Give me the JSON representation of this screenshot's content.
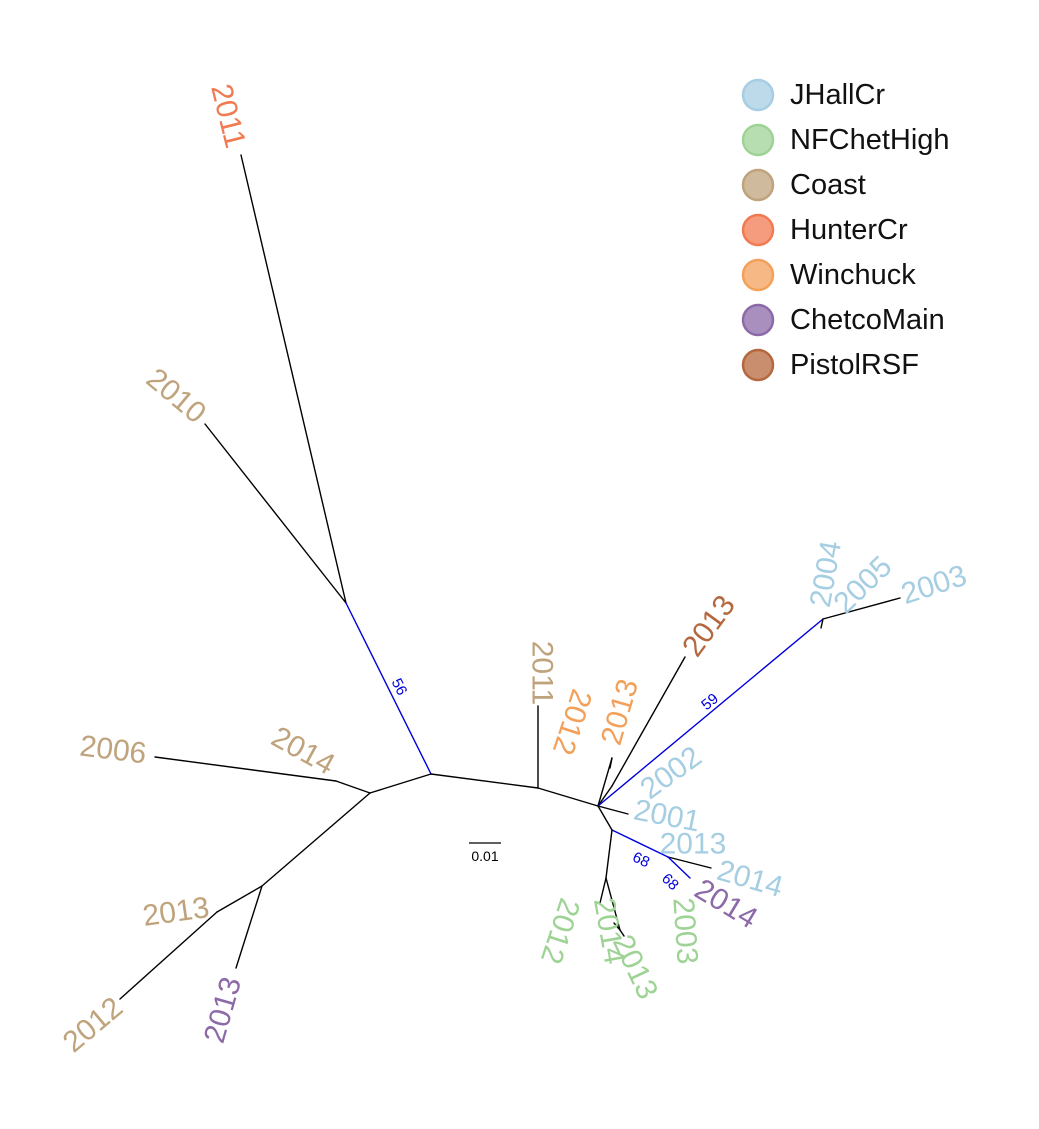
{
  "populations": {
    "JHallCr": "#a6cee3",
    "NFChetHigh": "#9fd396",
    "Coast": "#bfa37c",
    "HunterCr": "#f17a53",
    "Winchuck": "#f3a05b",
    "ChetcoMain": "#8c6aa8",
    "PistolRSF": "#b5683d"
  },
  "legend": {
    "items": [
      {
        "label": "JHallCr",
        "population": "JHallCr"
      },
      {
        "label": "NFChetHigh",
        "population": "NFChetHigh"
      },
      {
        "label": "Coast",
        "population": "Coast"
      },
      {
        "label": "HunterCr",
        "population": "HunterCr"
      },
      {
        "label": "Winchuck",
        "population": "Winchuck"
      },
      {
        "label": "ChetcoMain",
        "population": "ChetcoMain"
      },
      {
        "label": "PistolRSF",
        "population": "PistolRSF"
      }
    ]
  },
  "tips": [
    {
      "id": "t-hunter-2011",
      "label": "2011",
      "population": "HunterCr"
    },
    {
      "id": "t-coast-2010",
      "label": "2010",
      "population": "Coast"
    },
    {
      "id": "t-coast-2006",
      "label": "2006",
      "population": "Coast"
    },
    {
      "id": "t-coast-2014",
      "label": "2014",
      "population": "Coast"
    },
    {
      "id": "t-coast-2013",
      "label": "2013",
      "population": "Coast"
    },
    {
      "id": "t-coast-2012",
      "label": "2012",
      "population": "Coast"
    },
    {
      "id": "t-chetco-2013",
      "label": "2013",
      "population": "ChetcoMain"
    },
    {
      "id": "t-coast-2011",
      "label": "2011",
      "population": "Coast"
    },
    {
      "id": "t-winchuck-2012",
      "label": "2012",
      "population": "Winchuck"
    },
    {
      "id": "t-winchuck-2013",
      "label": "2013",
      "population": "Winchuck"
    },
    {
      "id": "t-pistol-2013",
      "label": "2013",
      "population": "PistolRSF"
    },
    {
      "id": "t-jhall-2004",
      "label": "2004",
      "population": "JHallCr"
    },
    {
      "id": "t-jhall-2005",
      "label": "2005",
      "population": "JHallCr"
    },
    {
      "id": "t-jhall-2003",
      "label": "2003",
      "population": "JHallCr"
    },
    {
      "id": "t-jhall-2002",
      "label": "2002",
      "population": "JHallCr"
    },
    {
      "id": "t-jhall-2001",
      "label": "2001",
      "population": "JHallCr"
    },
    {
      "id": "t-jhall-2013",
      "label": "2013",
      "population": "JHallCr"
    },
    {
      "id": "t-jhall-2014",
      "label": "2014",
      "population": "JHallCr"
    },
    {
      "id": "t-chetco-2014",
      "label": "2014",
      "population": "ChetcoMain"
    },
    {
      "id": "t-nfchet-2003",
      "label": "2003",
      "population": "NFChetHigh"
    },
    {
      "id": "t-nfchet-2012",
      "label": "2012",
      "population": "NFChetHigh"
    },
    {
      "id": "t-nfchet-2014",
      "label": "2014",
      "population": "NFChetHigh"
    },
    {
      "id": "t-nfchet-2013",
      "label": "2013",
      "population": "NFChetHigh"
    }
  ],
  "supports": [
    {
      "id": "s-56",
      "label": "56"
    },
    {
      "id": "s-59",
      "label": "59"
    },
    {
      "id": "s-68a",
      "label": "68"
    },
    {
      "id": "s-68b",
      "label": "68"
    }
  ],
  "scale_bar": {
    "label": "0.01"
  },
  "colors": {
    "branch": "#000000",
    "supported_branch": "#0000dd",
    "support_text": "#0000dd"
  }
}
